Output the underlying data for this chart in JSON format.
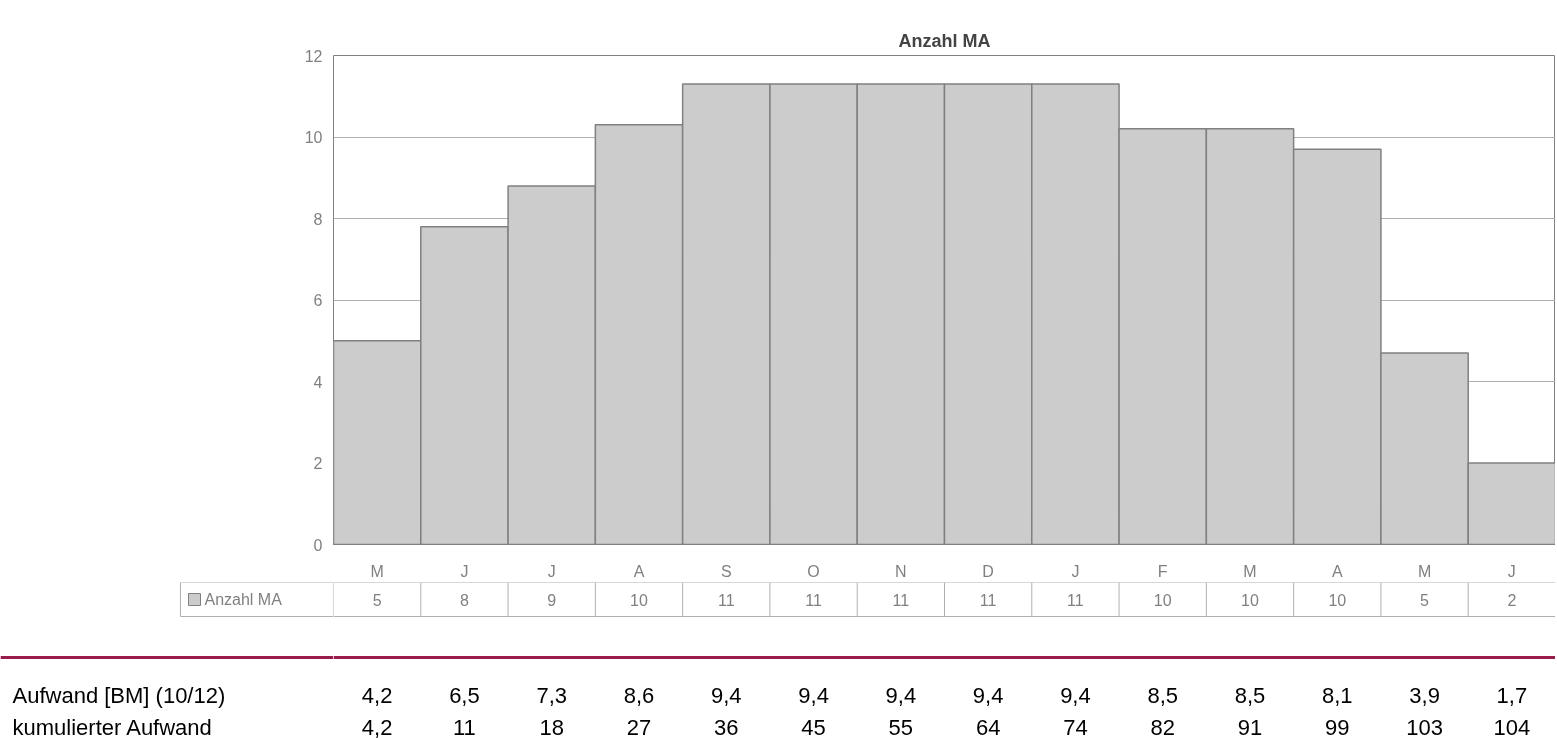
{
  "chart_data": {
    "type": "bar",
    "title": "Anzahl MA",
    "categories": [
      "M",
      "J",
      "J",
      "A",
      "S",
      "O",
      "N",
      "D",
      "J",
      "F",
      "M",
      "A",
      "M",
      "J"
    ],
    "series": [
      {
        "name": "Anzahl MA",
        "color": "#cccccc",
        "values": [
          5.0,
          7.8,
          8.8,
          10.3,
          11.3,
          11.3,
          11.3,
          11.3,
          11.3,
          10.2,
          10.2,
          9.7,
          4.7,
          2.0
        ],
        "value_labels": [
          "5",
          "8",
          "9",
          "10",
          "11",
          "11",
          "11",
          "11",
          "11",
          "10",
          "10",
          "10",
          "5",
          "2"
        ]
      }
    ],
    "ylim": [
      0,
      12
    ],
    "yticks": [
      0,
      2,
      4,
      6,
      8,
      10,
      12
    ],
    "grid": "y",
    "legend": "bottom",
    "annotations": [
      "Aufwand [BM] (10/12)",
      "4,2",
      "6,5",
      "7,3",
      "8,6",
      "9,4",
      "9,4",
      "9,4",
      "9,4",
      "9,4",
      "8,5",
      "8,5",
      "8,1",
      "3,9",
      "1,7",
      "kumulierter Aufwand",
      "4,2",
      "11",
      "18",
      "27",
      "36",
      "45",
      "55",
      "64",
      "74",
      "82",
      "91",
      "99",
      "103",
      "104"
    ]
  }
}
